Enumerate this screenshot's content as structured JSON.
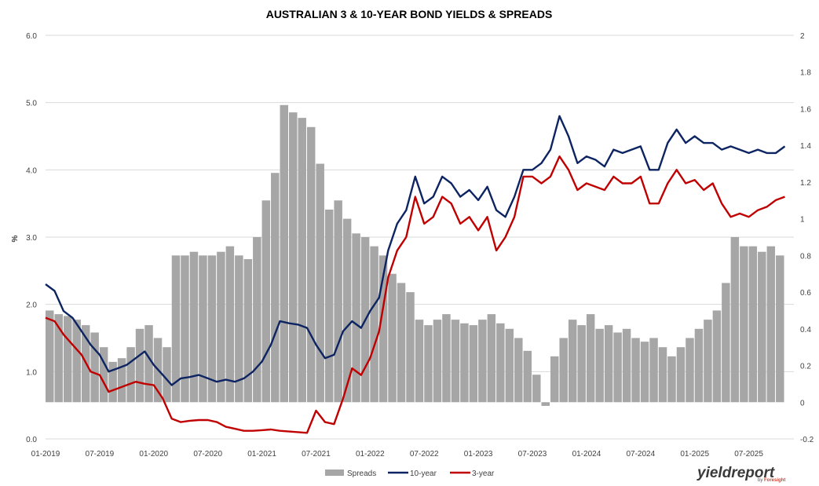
{
  "chart_data": {
    "type": "line+bar",
    "title": "AUSTRALIAN 3 & 10-YEAR BOND YIELDS & SPREADS",
    "ylabel_left": "%",
    "y_left": {
      "range": [
        0.0,
        6.0
      ],
      "ticks": [
        "6.0",
        "5.0",
        "4.0",
        "3.0",
        "2.0",
        "1.0",
        "0.0"
      ]
    },
    "y_right": {
      "range": [
        -0.2,
        2.0
      ],
      "ticks": [
        "2",
        "1.8",
        "1.6",
        "1.4",
        "1.2",
        "1",
        "0.8",
        "0.6",
        "0.4",
        "0.2",
        "0",
        "-0.2"
      ]
    },
    "x_ticks": [
      "01-2019",
      "07-2019",
      "01-2020",
      "07-2020",
      "01-2021",
      "07-2021",
      "01-2022",
      "07-2022",
      "01-2023",
      "07-2023",
      "01-2024",
      "07-2024",
      "01-2025",
      "07-2025"
    ],
    "x_range": [
      "2019-01",
      "2025-12"
    ],
    "grid": "horizontal",
    "legend_position": "bottom",
    "series": [
      {
        "name": "Spreads",
        "kind": "bar",
        "axis": "right",
        "color": "#a6a6a6",
        "x": [
          "2019-01",
          "2019-02",
          "2019-03",
          "2019-04",
          "2019-05",
          "2019-06",
          "2019-07",
          "2019-08",
          "2019-09",
          "2019-10",
          "2019-11",
          "2019-12",
          "2020-01",
          "2020-02",
          "2020-03",
          "2020-04",
          "2020-05",
          "2020-06",
          "2020-07",
          "2020-08",
          "2020-09",
          "2020-10",
          "2020-11",
          "2020-12",
          "2021-01",
          "2021-02",
          "2021-03",
          "2021-04",
          "2021-05",
          "2021-06",
          "2021-07",
          "2021-08",
          "2021-09",
          "2021-10",
          "2021-11",
          "2021-12",
          "2022-01",
          "2022-02",
          "2022-03",
          "2022-04",
          "2022-05",
          "2022-06",
          "2022-07",
          "2022-08",
          "2022-09",
          "2022-10",
          "2022-11",
          "2022-12",
          "2023-01",
          "2023-02",
          "2023-03",
          "2023-04",
          "2023-05",
          "2023-06",
          "2023-07",
          "2023-08",
          "2023-09",
          "2023-10",
          "2023-11",
          "2023-12",
          "2024-01",
          "2024-02",
          "2024-03",
          "2024-04",
          "2024-05",
          "2024-06",
          "2024-07",
          "2024-08",
          "2024-09",
          "2024-10",
          "2024-11",
          "2024-12",
          "2025-01",
          "2025-02",
          "2025-03",
          "2025-04",
          "2025-05",
          "2025-06",
          "2025-07",
          "2025-08",
          "2025-09",
          "2025-10"
        ],
        "values": [
          0.5,
          0.48,
          0.47,
          0.45,
          0.42,
          0.38,
          0.3,
          0.22,
          0.24,
          0.3,
          0.4,
          0.42,
          0.35,
          0.3,
          0.8,
          0.8,
          0.82,
          0.8,
          0.8,
          0.82,
          0.85,
          0.8,
          0.78,
          0.9,
          1.1,
          1.25,
          1.62,
          1.58,
          1.55,
          1.5,
          1.3,
          1.05,
          1.1,
          1.0,
          0.92,
          0.9,
          0.85,
          0.8,
          0.7,
          0.65,
          0.6,
          0.45,
          0.42,
          0.45,
          0.48,
          0.45,
          0.43,
          0.42,
          0.45,
          0.48,
          0.43,
          0.4,
          0.35,
          0.28,
          0.15,
          -0.02,
          0.25,
          0.35,
          0.45,
          0.42,
          0.48,
          0.4,
          0.42,
          0.38,
          0.4,
          0.35,
          0.33,
          0.35,
          0.3,
          0.25,
          0.3,
          0.35,
          0.4,
          0.45,
          0.5,
          0.65,
          0.9,
          0.85,
          0.85,
          0.82,
          0.85,
          0.8
        ]
      },
      {
        "name": "10-year",
        "kind": "line",
        "axis": "left",
        "color": "#0d2462",
        "x": [
          "2019-01",
          "2019-02",
          "2019-03",
          "2019-04",
          "2019-05",
          "2019-06",
          "2019-07",
          "2019-08",
          "2019-09",
          "2019-10",
          "2019-11",
          "2019-12",
          "2020-01",
          "2020-02",
          "2020-03",
          "2020-04",
          "2020-05",
          "2020-06",
          "2020-07",
          "2020-08",
          "2020-09",
          "2020-10",
          "2020-11",
          "2020-12",
          "2021-01",
          "2021-02",
          "2021-03",
          "2021-04",
          "2021-05",
          "2021-06",
          "2021-07",
          "2021-08",
          "2021-09",
          "2021-10",
          "2021-11",
          "2021-12",
          "2022-01",
          "2022-02",
          "2022-03",
          "2022-04",
          "2022-05",
          "2022-06",
          "2022-07",
          "2022-08",
          "2022-09",
          "2022-10",
          "2022-11",
          "2022-12",
          "2023-01",
          "2023-02",
          "2023-03",
          "2023-04",
          "2023-05",
          "2023-06",
          "2023-07",
          "2023-08",
          "2023-09",
          "2023-10",
          "2023-11",
          "2023-12",
          "2024-01",
          "2024-02",
          "2024-03",
          "2024-04",
          "2024-05",
          "2024-06",
          "2024-07",
          "2024-08",
          "2024-09",
          "2024-10",
          "2024-11",
          "2024-12",
          "2025-01",
          "2025-02",
          "2025-03",
          "2025-04",
          "2025-05",
          "2025-06",
          "2025-07",
          "2025-08",
          "2025-09",
          "2025-10",
          "2025-11"
        ],
        "values": [
          2.3,
          2.2,
          1.9,
          1.8,
          1.6,
          1.4,
          1.25,
          1.0,
          1.05,
          1.1,
          1.2,
          1.3,
          1.1,
          0.95,
          0.8,
          0.9,
          0.92,
          0.95,
          0.9,
          0.85,
          0.88,
          0.85,
          0.9,
          1.0,
          1.15,
          1.4,
          1.75,
          1.72,
          1.7,
          1.65,
          1.4,
          1.2,
          1.25,
          1.6,
          1.75,
          1.65,
          1.9,
          2.1,
          2.8,
          3.2,
          3.4,
          3.9,
          3.5,
          3.6,
          3.9,
          3.8,
          3.6,
          3.7,
          3.55,
          3.75,
          3.4,
          3.3,
          3.6,
          4.0,
          4.0,
          4.1,
          4.3,
          4.8,
          4.5,
          4.1,
          4.2,
          4.15,
          4.05,
          4.3,
          4.25,
          4.3,
          4.35,
          4.0,
          4.0,
          4.4,
          4.6,
          4.4,
          4.5,
          4.4,
          4.4,
          4.3,
          4.35,
          4.3,
          4.25,
          4.3,
          4.25,
          4.25,
          4.35
        ]
      },
      {
        "name": "3-year",
        "kind": "line",
        "axis": "left",
        "color": "#c00000",
        "x": [
          "2019-01",
          "2019-02",
          "2019-03",
          "2019-04",
          "2019-05",
          "2019-06",
          "2019-07",
          "2019-08",
          "2019-09",
          "2019-10",
          "2019-11",
          "2019-12",
          "2020-01",
          "2020-02",
          "2020-03",
          "2020-04",
          "2020-05",
          "2020-06",
          "2020-07",
          "2020-08",
          "2020-09",
          "2020-10",
          "2020-11",
          "2020-12",
          "2021-01",
          "2021-02",
          "2021-03",
          "2021-04",
          "2021-05",
          "2021-06",
          "2021-07",
          "2021-08",
          "2021-09",
          "2021-10",
          "2021-11",
          "2021-12",
          "2022-01",
          "2022-02",
          "2022-03",
          "2022-04",
          "2022-05",
          "2022-06",
          "2022-07",
          "2022-08",
          "2022-09",
          "2022-10",
          "2022-11",
          "2022-12",
          "2023-01",
          "2023-02",
          "2023-03",
          "2023-04",
          "2023-05",
          "2023-06",
          "2023-07",
          "2023-08",
          "2023-09",
          "2023-10",
          "2023-11",
          "2023-12",
          "2024-01",
          "2024-02",
          "2024-03",
          "2024-04",
          "2024-05",
          "2024-06",
          "2024-07",
          "2024-08",
          "2024-09",
          "2024-10",
          "2024-11",
          "2024-12",
          "2025-01",
          "2025-02",
          "2025-03",
          "2025-04",
          "2025-05",
          "2025-06",
          "2025-07",
          "2025-08",
          "2025-09",
          "2025-10",
          "2025-11"
        ],
        "values": [
          1.8,
          1.75,
          1.55,
          1.4,
          1.25,
          1.0,
          0.95,
          0.7,
          0.75,
          0.8,
          0.85,
          0.82,
          0.8,
          0.6,
          0.3,
          0.25,
          0.27,
          0.28,
          0.28,
          0.25,
          0.18,
          0.15,
          0.12,
          0.12,
          0.13,
          0.14,
          0.12,
          0.11,
          0.1,
          0.09,
          0.42,
          0.25,
          0.22,
          0.6,
          1.05,
          0.95,
          1.2,
          1.6,
          2.4,
          2.8,
          3.0,
          3.6,
          3.2,
          3.3,
          3.6,
          3.5,
          3.2,
          3.3,
          3.1,
          3.3,
          2.8,
          3.0,
          3.3,
          3.9,
          3.9,
          3.8,
          3.9,
          4.2,
          4.0,
          3.7,
          3.8,
          3.75,
          3.7,
          3.9,
          3.8,
          3.8,
          3.9,
          3.5,
          3.5,
          3.8,
          4.0,
          3.8,
          3.85,
          3.7,
          3.8,
          3.5,
          3.3,
          3.35,
          3.3,
          3.4,
          3.45,
          3.55,
          3.6
        ]
      }
    ]
  },
  "logo": {
    "main": "yieldreport",
    "sub": "by",
    "brand": "Foresight"
  },
  "colors": {
    "grid": "#d9d9d9",
    "axis_text": "#404040"
  }
}
